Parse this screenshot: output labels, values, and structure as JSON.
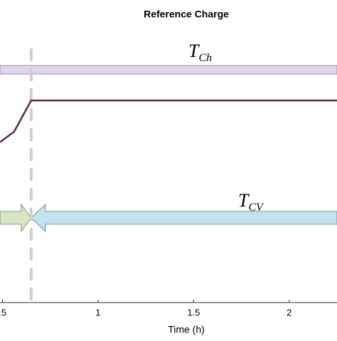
{
  "chart_data": {
    "type": "line",
    "title": "Reference Charge",
    "x_label": "Time (h)",
    "xlim": [
      0.487,
      2.25
    ],
    "ylim": [
      0,
      1
    ],
    "xticks": [
      {
        "value": 0.5,
        "label": ".5"
      },
      1,
      1.5,
      2
    ],
    "series": [
      {
        "color": "#5b2a4e",
        "x": [
          0.487,
          0.561,
          0.65,
          2.25
        ],
        "values": [
          0.53,
          0.565,
          0.668,
          0.668
        ]
      }
    ],
    "phase_boundary": 0.65,
    "annotations": [
      {
        "text": "T",
        "sub": "Ch"
      },
      {
        "text": "T",
        "sub": "CV"
      }
    ]
  }
}
